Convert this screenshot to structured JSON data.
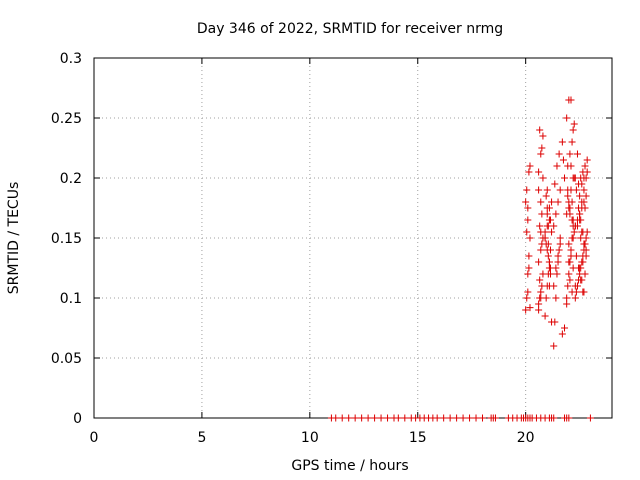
{
  "chart_data": {
    "type": "scatter",
    "title": "Day 346 of 2022, SRMTID for receiver nrmg",
    "xlabel": "GPS time / hours",
    "ylabel": "SRMTID / TECUs",
    "xlim": [
      0,
      24
    ],
    "ylim": [
      0,
      0.3
    ],
    "x_ticks": [
      0,
      5,
      10,
      15,
      20
    ],
    "y_ticks": [
      0,
      0.05,
      0.1,
      0.15,
      0.2,
      0.25,
      0.3
    ],
    "y_tick_labels": [
      "0",
      "0.05",
      "0.1",
      "0.15",
      "0.2",
      "0.25",
      "0.3"
    ],
    "grid": true,
    "marker": "plus",
    "series": [
      {
        "name": "SRMTID",
        "color": "#dd0000",
        "x": [
          11.0,
          11.2,
          11.5,
          11.8,
          12.1,
          12.4,
          12.7,
          13.0,
          13.3,
          13.6,
          13.9,
          14.1,
          14.4,
          14.7,
          14.9,
          15.1,
          15.3,
          15.5,
          15.7,
          15.9,
          16.2,
          16.5,
          16.8,
          17.1,
          17.4,
          17.7,
          18.0,
          18.4,
          18.5,
          18.6,
          19.2,
          19.4,
          19.6,
          19.8,
          19.9,
          20.0,
          20.1,
          20.2,
          20.3,
          20.5,
          20.7,
          20.9,
          21.1,
          21.2,
          21.3,
          21.8,
          21.9,
          22.0,
          23.0,
          20.0,
          20.05,
          20.1,
          20.15,
          20.2,
          20.1,
          20.0,
          20.05,
          20.15,
          20.2,
          20.1,
          20.05,
          20.15,
          20.1,
          20.2,
          20.6,
          20.65,
          20.7,
          20.75,
          20.8,
          20.6,
          20.7,
          20.8,
          20.65,
          20.75,
          20.7,
          20.6,
          20.8,
          20.7,
          20.75,
          20.65,
          20.8,
          20.6,
          20.7,
          20.75,
          20.65,
          20.7,
          20.6,
          20.9,
          20.95,
          21.0,
          21.05,
          21.1,
          21.15,
          20.9,
          21.0,
          21.1,
          21.2,
          20.95,
          21.05,
          21.15,
          21.0,
          21.1,
          21.2,
          20.9,
          21.0,
          21.05,
          21.1,
          21.15,
          20.95,
          21.0,
          21.1,
          21.2,
          20.9,
          21.05,
          21.15,
          21.0,
          21.1,
          21.3,
          21.35,
          21.4,
          21.45,
          21.5,
          21.55,
          21.6,
          21.3,
          21.4,
          21.5,
          21.6,
          21.35,
          21.45,
          21.55,
          21.7,
          21.75,
          21.8,
          21.3,
          21.4,
          21.5,
          21.6,
          21.7,
          21.8,
          21.9,
          21.95,
          22.0,
          22.05,
          22.1,
          22.15,
          22.2,
          21.9,
          22.0,
          22.1,
          22.2,
          21.95,
          22.05,
          22.15,
          22.25,
          21.9,
          22.0,
          22.1,
          22.2,
          22.3,
          21.95,
          22.05,
          22.15,
          22.25,
          22.0,
          22.1,
          22.2,
          22.05,
          22.15,
          21.9,
          22.0,
          22.1,
          22.2,
          22.3,
          22.05,
          22.15,
          21.95,
          22.25,
          22.1,
          22.0,
          22.2,
          22.3,
          22.35,
          22.4,
          22.45,
          22.5,
          22.55,
          22.6,
          22.65,
          22.7,
          22.75,
          22.8,
          22.85,
          22.3,
          22.4,
          22.5,
          22.6,
          22.7,
          22.8,
          22.35,
          22.45,
          22.55,
          22.65,
          22.75,
          22.85,
          22.4,
          22.5,
          22.6,
          22.7,
          22.8,
          22.45,
          22.55,
          22.65,
          22.75,
          22.5,
          22.6,
          22.7,
          22.8,
          22.55,
          22.65,
          22.75,
          22.3,
          22.4,
          22.5,
          22.6,
          22.7,
          22.8,
          22.85,
          22.45,
          22.55,
          22.65,
          22.75,
          22.35,
          22.5,
          22.6,
          22.7
        ],
        "y": [
          0,
          0,
          0,
          0,
          0,
          0,
          0,
          0,
          0,
          0,
          0,
          0,
          0,
          0,
          0,
          0,
          0,
          0,
          0,
          0,
          0,
          0,
          0,
          0,
          0,
          0,
          0,
          0,
          0,
          0,
          0,
          0,
          0,
          0,
          0,
          0,
          0,
          0,
          0,
          0,
          0,
          0,
          0,
          0,
          0,
          0,
          0,
          0,
          0,
          0.09,
          0.1,
          0.12,
          0.135,
          0.15,
          0.165,
          0.18,
          0.19,
          0.205,
          0.21,
          0.175,
          0.155,
          0.125,
          0.105,
          0.092,
          0.09,
          0.1,
          0.105,
          0.11,
          0.12,
          0.13,
          0.14,
          0.15,
          0.16,
          0.17,
          0.18,
          0.19,
          0.2,
          0.22,
          0.225,
          0.24,
          0.235,
          0.205,
          0.155,
          0.145,
          0.115,
          0.1,
          0.095,
          0.085,
          0.1,
          0.11,
          0.12,
          0.13,
          0.14,
          0.15,
          0.16,
          0.165,
          0.155,
          0.145,
          0.135,
          0.125,
          0.17,
          0.175,
          0.18,
          0.15,
          0.14,
          0.16,
          0.13,
          0.12,
          0.185,
          0.19,
          0.11,
          0.08,
          0.155,
          0.145,
          0.165,
          0.175,
          0.125,
          0.06,
          0.08,
          0.1,
          0.12,
          0.13,
          0.14,
          0.15,
          0.16,
          0.17,
          0.18,
          0.19,
          0.195,
          0.21,
          0.22,
          0.23,
          0.215,
          0.2,
          0.11,
          0.125,
          0.135,
          0.145,
          0.07,
          0.075,
          0.1,
          0.11,
          0.12,
          0.13,
          0.14,
          0.15,
          0.16,
          0.17,
          0.18,
          0.19,
          0.2,
          0.21,
          0.22,
          0.23,
          0.245,
          0.25,
          0.265,
          0.265,
          0.24,
          0.2,
          0.185,
          0.175,
          0.165,
          0.155,
          0.145,
          0.135,
          0.125,
          0.115,
          0.105,
          0.095,
          0.13,
          0.14,
          0.15,
          0.16,
          0.17,
          0.18,
          0.19,
          0.2,
          0.21,
          0.175,
          0.165,
          0.1,
          0.105,
          0.11,
          0.115,
          0.12,
          0.125,
          0.13,
          0.135,
          0.14,
          0.145,
          0.15,
          0.155,
          0.16,
          0.165,
          0.17,
          0.175,
          0.18,
          0.185,
          0.19,
          0.195,
          0.2,
          0.205,
          0.21,
          0.215,
          0.22,
          0.165,
          0.155,
          0.145,
          0.135,
          0.125,
          0.115,
          0.105,
          0.175,
          0.185,
          0.195,
          0.2,
          0.14,
          0.15,
          0.13,
          0.12,
          0.11,
          0.16,
          0.17,
          0.18,
          0.19,
          0.2,
          0.205,
          0.175,
          0.165,
          0.155,
          0.145,
          0.135,
          0.125,
          0.115,
          0.105
        ]
      }
    ]
  }
}
